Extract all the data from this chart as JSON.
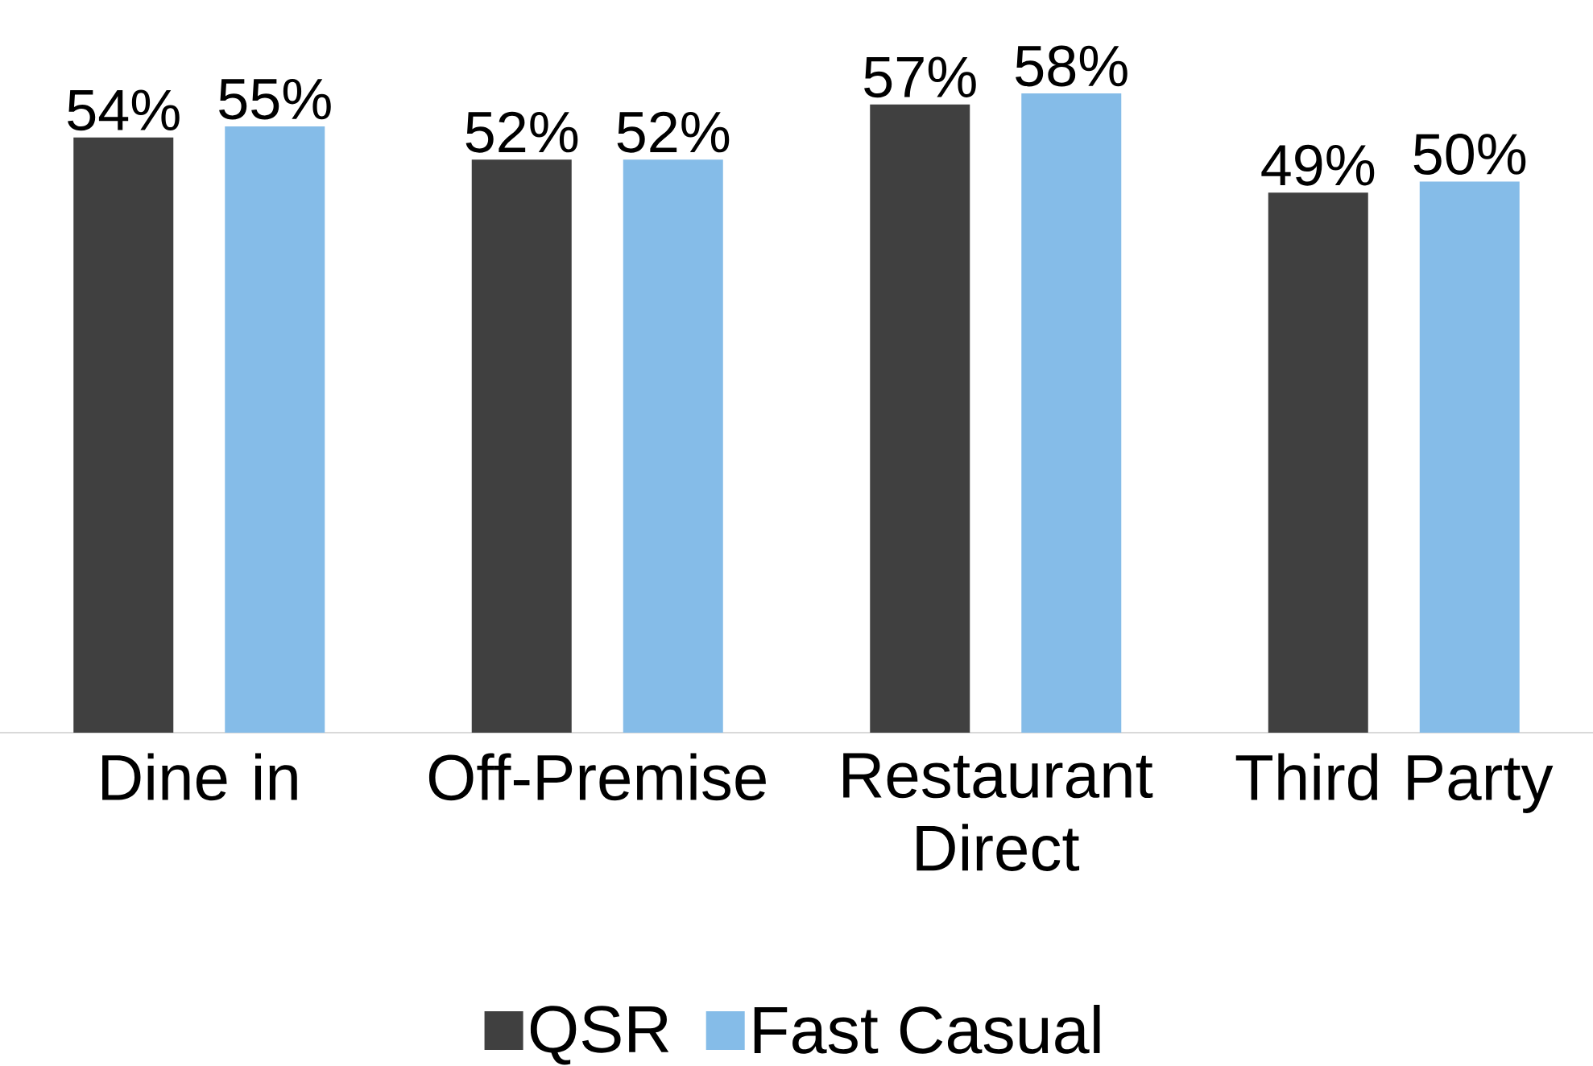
{
  "chart_data": {
    "type": "bar",
    "categories": [
      "Dine in",
      "Off-Premise",
      "Restaurant Direct",
      "Third Party"
    ],
    "series": [
      {
        "name": "QSR",
        "color": "#404040",
        "values": [
          54,
          52,
          57,
          49
        ],
        "value_labels": [
          "54%",
          "52%",
          "57%",
          "49%"
        ]
      },
      {
        "name": "Fast Casual",
        "color": "#85bce8",
        "values": [
          55,
          52,
          58,
          50
        ],
        "value_labels": [
          "55%",
          "52%",
          "58%",
          "50%"
        ]
      }
    ],
    "legend": "bottom",
    "grid": false
  }
}
